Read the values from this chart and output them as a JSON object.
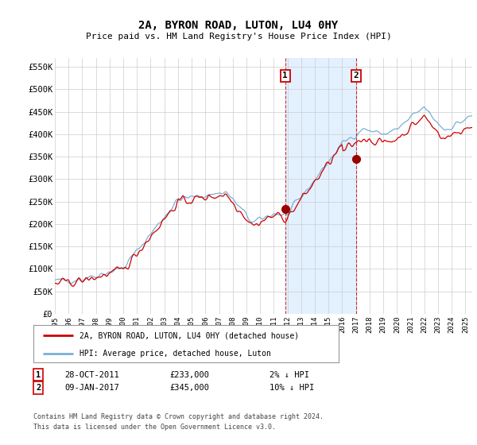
{
  "title": "2A, BYRON ROAD, LUTON, LU4 0HY",
  "subtitle": "Price paid vs. HM Land Registry's House Price Index (HPI)",
  "ylabel_ticks": [
    "£0",
    "£50K",
    "£100K",
    "£150K",
    "£200K",
    "£250K",
    "£300K",
    "£350K",
    "£400K",
    "£450K",
    "£500K",
    "£550K"
  ],
  "ytick_values": [
    0,
    50000,
    100000,
    150000,
    200000,
    250000,
    300000,
    350000,
    400000,
    450000,
    500000,
    550000
  ],
  "ylim": [
    0,
    570000
  ],
  "purchase1": {
    "date_label": "28-OCT-2011",
    "price": 233000,
    "year": 2011.83,
    "label": "1"
  },
  "purchase2": {
    "date_label": "09-JAN-2017",
    "price": 345000,
    "year": 2017.03,
    "label": "2"
  },
  "legend_line1": "2A, BYRON ROAD, LUTON, LU4 0HY (detached house)",
  "legend_line2": "HPI: Average price, detached house, Luton",
  "footer": "Contains HM Land Registry data © Crown copyright and database right 2024.\nThis data is licensed under the Open Government Licence v3.0.",
  "hpi_color": "#7bafd4",
  "price_color": "#cc0000",
  "background_color": "#ffffff",
  "plot_bg_color": "#ffffff",
  "grid_color": "#cccccc",
  "shade_color": "#ddeeff",
  "xmin": 1995.0,
  "xmax": 2025.5
}
